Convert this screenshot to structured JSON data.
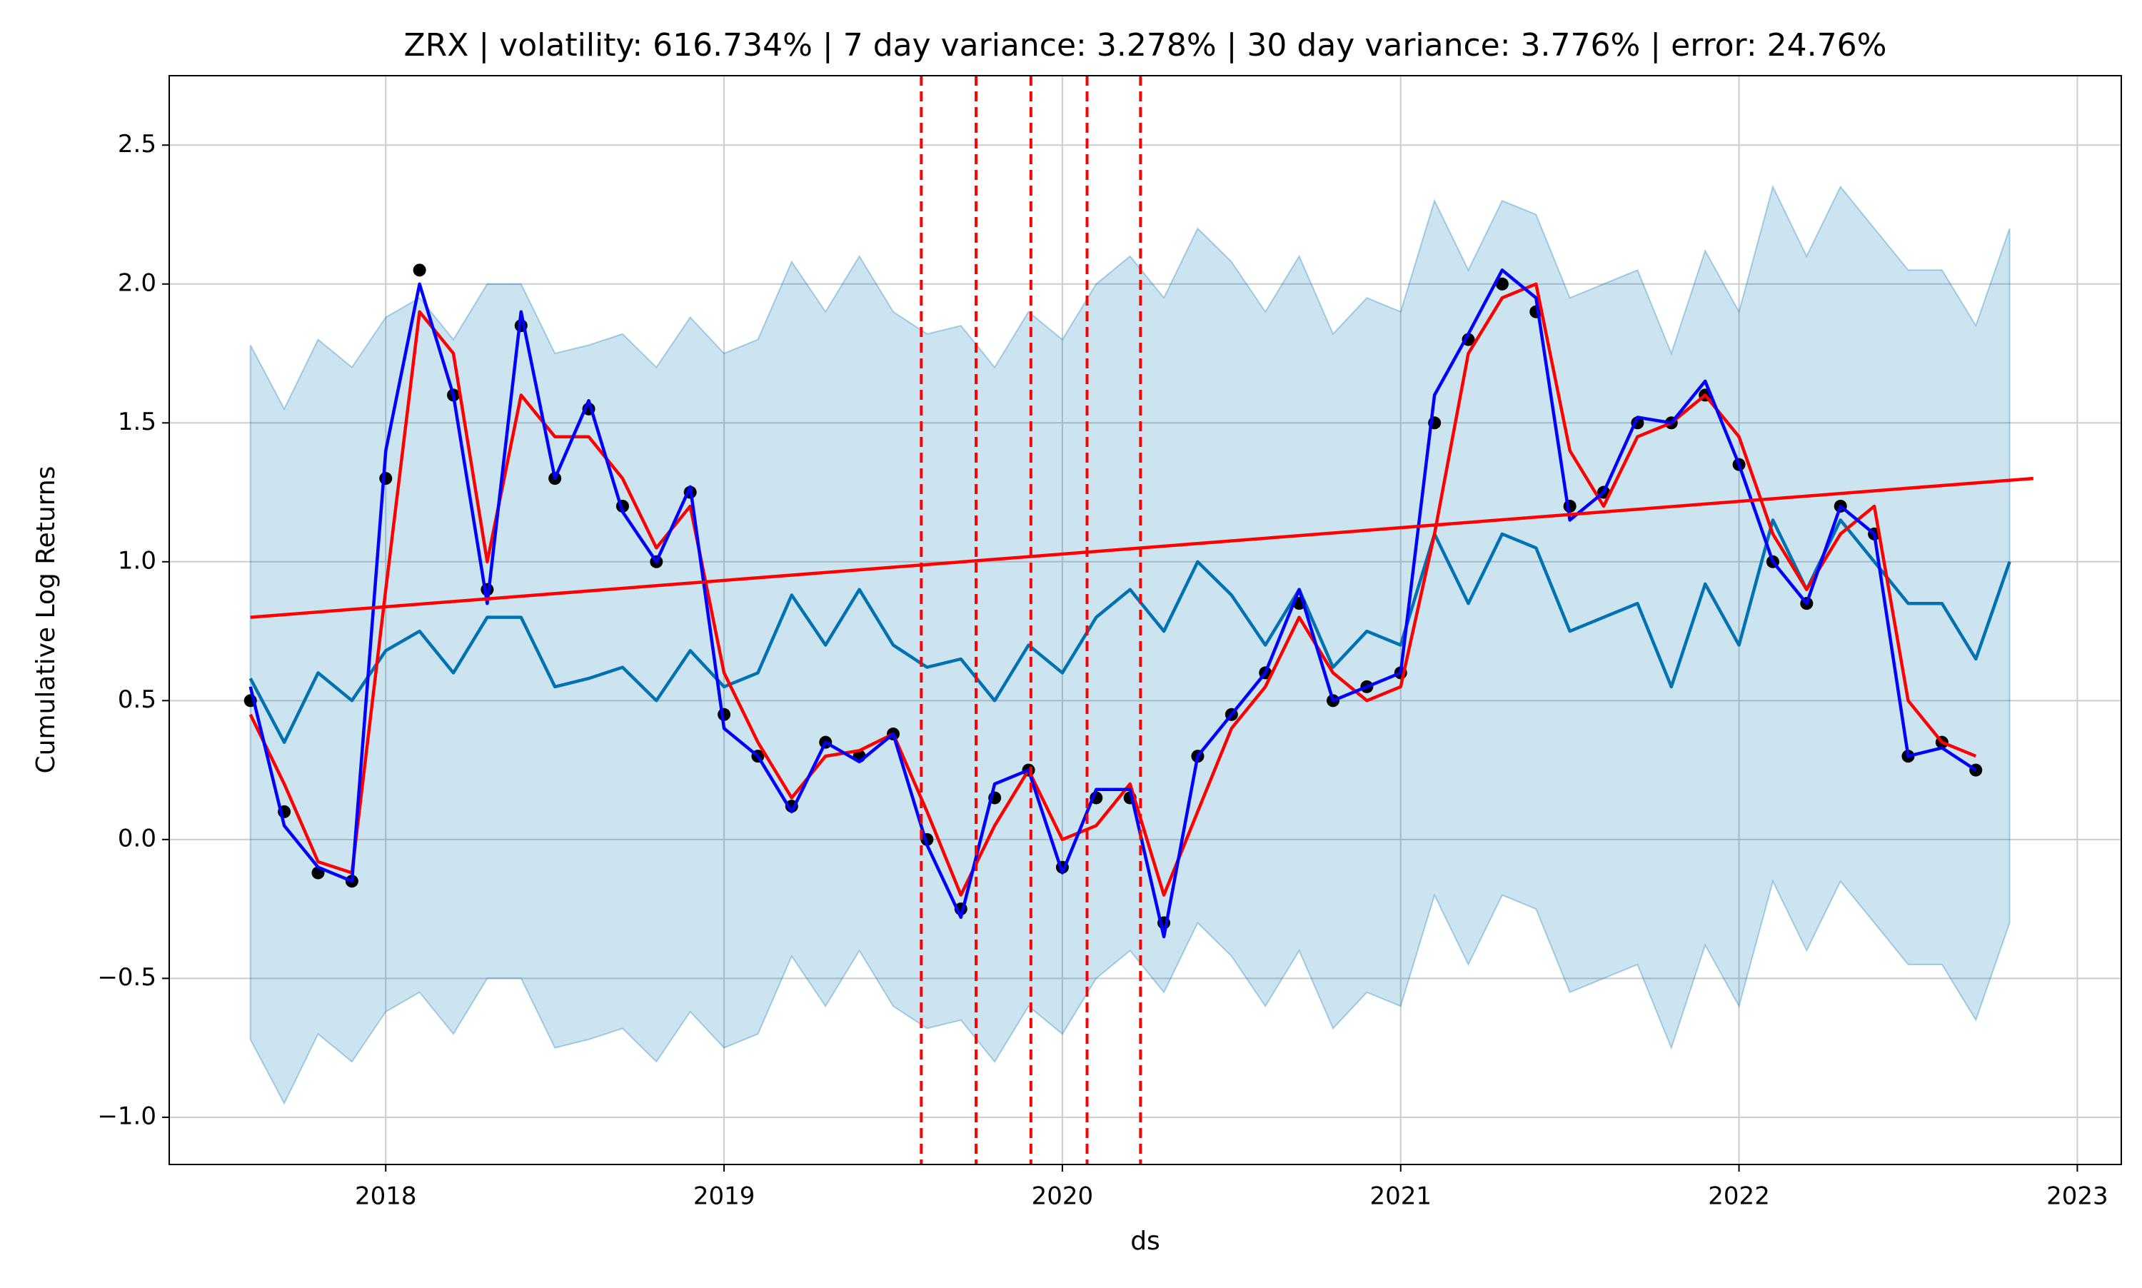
{
  "chart_data": {
    "type": "line",
    "title": "ZRX | volatility: 616.734% | 7 day variance: 3.278% | 30 day variance: 3.776% | error: 24.76%",
    "x_label": "ds",
    "y_label": "Cumulative Log Returns",
    "grid": true,
    "xlim": [
      2017.36,
      2023.13
    ],
    "ylim": [
      -1.17,
      2.75
    ],
    "xticks": [
      2018,
      2019,
      2020,
      2021,
      2022,
      2023
    ],
    "yticks": [
      {
        "value": -1,
        "label": "−1.0"
      },
      {
        "value": -0.5,
        "label": "−0.5"
      },
      {
        "value": 0,
        "label": "0.0"
      },
      0.5,
      {
        "value": 1,
        "label": "1.0"
      },
      1.5,
      {
        "value": 2,
        "label": "2.0"
      },
      2.5
    ],
    "x": [
      2017.6,
      2017.7,
      2017.8,
      2017.9,
      2018.0,
      2018.1,
      2018.2,
      2018.3,
      2018.4,
      2018.5,
      2018.6,
      2018.7,
      2018.8,
      2018.9,
      2019.0,
      2019.1,
      2019.2,
      2019.3,
      2019.4,
      2019.5,
      2019.6,
      2019.7,
      2019.8,
      2019.9,
      2020.0,
      2020.1,
      2020.2,
      2020.3,
      2020.4,
      2020.5,
      2020.6,
      2020.7,
      2020.8,
      2020.9,
      2021.0,
      2021.1,
      2021.2,
      2021.3,
      2021.4,
      2021.5,
      2021.6,
      2021.7,
      2021.8,
      2021.9,
      2022.0,
      2022.1,
      2022.2,
      2022.3,
      2022.4,
      2022.5,
      2022.6,
      2022.7,
      2022.8
    ],
    "series": [
      {
        "kind": "band",
        "color": "#0072b2",
        "opacity": 0.2,
        "upper": [
          1.78,
          1.55,
          1.8,
          1.7,
          1.88,
          1.95,
          1.8,
          2.0,
          2.0,
          1.75,
          1.78,
          1.82,
          1.7,
          1.88,
          1.75,
          1.8,
          2.08,
          1.9,
          2.1,
          1.9,
          1.82,
          1.85,
          1.7,
          1.9,
          1.8,
          2.0,
          2.1,
          1.95,
          2.2,
          2.08,
          1.9,
          2.1,
          1.82,
          1.95,
          1.9,
          2.3,
          2.05,
          2.3,
          2.25,
          1.95,
          2.0,
          2.05,
          1.75,
          2.12,
          1.9,
          2.35,
          2.1,
          2.35,
          2.2,
          2.05,
          2.05,
          1.85,
          2.2
        ],
        "lower": [
          -0.72,
          -0.95,
          -0.7,
          -0.8,
          -0.62,
          -0.55,
          -0.7,
          -0.5,
          -0.5,
          -0.75,
          -0.72,
          -0.68,
          -0.8,
          -0.62,
          -0.75,
          -0.7,
          -0.42,
          -0.6,
          -0.4,
          -0.6,
          -0.68,
          -0.65,
          -0.8,
          -0.6,
          -0.7,
          -0.5,
          -0.4,
          -0.55,
          -0.3,
          -0.42,
          -0.6,
          -0.4,
          -0.68,
          -0.55,
          -0.6,
          -0.2,
          -0.45,
          -0.2,
          -0.25,
          -0.55,
          -0.5,
          -0.45,
          -0.75,
          -0.38,
          -0.6,
          -0.15,
          -0.4,
          -0.15,
          -0.3,
          -0.45,
          -0.45,
          -0.65,
          -0.3
        ]
      },
      {
        "kind": "line",
        "color": "#0072b2",
        "values": [
          0.58,
          0.35,
          0.6,
          0.5,
          0.68,
          0.75,
          0.6,
          0.8,
          0.8,
          0.55,
          0.58,
          0.62,
          0.5,
          0.68,
          0.55,
          0.6,
          0.88,
          0.7,
          0.9,
          0.7,
          0.62,
          0.65,
          0.5,
          0.7,
          0.6,
          0.8,
          0.9,
          0.75,
          1.0,
          0.88,
          0.7,
          0.9,
          0.62,
          0.75,
          0.7,
          1.1,
          0.85,
          1.1,
          1.05,
          0.75,
          0.8,
          0.85,
          0.55,
          0.92,
          0.7,
          1.15,
          0.9,
          1.15,
          1.0,
          0.85,
          0.85,
          0.65,
          1.0
        ]
      },
      {
        "kind": "scatter",
        "color": "#000000",
        "values": [
          0.5,
          0.1,
          -0.12,
          -0.15,
          1.3,
          2.05,
          1.6,
          0.9,
          1.85,
          1.3,
          1.55,
          1.2,
          1.0,
          1.25,
          0.45,
          0.3,
          0.12,
          0.35,
          0.3,
          0.38,
          0.0,
          -0.25,
          0.15,
          0.25,
          -0.1,
          0.15,
          0.15,
          -0.3,
          0.3,
          0.45,
          0.6,
          0.85,
          0.5,
          0.55,
          0.6,
          1.5,
          1.8,
          2.0,
          1.9,
          1.2,
          1.25,
          1.5,
          1.5,
          1.6,
          1.35,
          1.0,
          0.85,
          1.2,
          1.1,
          0.3,
          0.35,
          0.25,
          null
        ]
      },
      {
        "kind": "line",
        "color": "#ff0000",
        "values": [
          0.45,
          0.2,
          -0.08,
          -0.12,
          0.9,
          1.9,
          1.75,
          1.0,
          1.6,
          1.45,
          1.45,
          1.3,
          1.05,
          1.2,
          0.6,
          0.35,
          0.15,
          0.3,
          0.32,
          0.38,
          0.1,
          -0.2,
          0.05,
          0.25,
          0.0,
          0.05,
          0.2,
          -0.2,
          0.1,
          0.4,
          0.55,
          0.8,
          0.6,
          0.5,
          0.55,
          1.1,
          1.75,
          1.95,
          2.0,
          1.4,
          1.2,
          1.45,
          1.5,
          1.6,
          1.45,
          1.1,
          0.9,
          1.1,
          1.2,
          0.5,
          0.35,
          0.3,
          null
        ]
      },
      {
        "kind": "line",
        "color": "#0000ff",
        "values": [
          0.55,
          0.05,
          -0.1,
          -0.15,
          1.4,
          2.0,
          1.6,
          0.85,
          1.9,
          1.3,
          1.58,
          1.18,
          1.0,
          1.27,
          0.4,
          0.3,
          0.1,
          0.35,
          0.28,
          0.38,
          -0.02,
          -0.28,
          0.2,
          0.25,
          -0.12,
          0.18,
          0.18,
          -0.35,
          0.3,
          0.45,
          0.6,
          0.9,
          0.5,
          0.55,
          0.6,
          1.6,
          1.82,
          2.05,
          1.95,
          1.15,
          1.25,
          1.52,
          1.5,
          1.65,
          1.35,
          1.0,
          0.85,
          1.2,
          1.1,
          0.3,
          0.33,
          0.25,
          null
        ]
      },
      {
        "kind": "line",
        "color": "#ff0000",
        "x": [
          2017.6,
          2022.87
        ],
        "values": [
          0.8,
          1.3
        ]
      }
    ],
    "vlines": {
      "color": "#ff0000",
      "dashed": true,
      "x": [
        2019.583,
        2019.745,
        2019.907,
        2020.073,
        2020.231
      ]
    }
  }
}
